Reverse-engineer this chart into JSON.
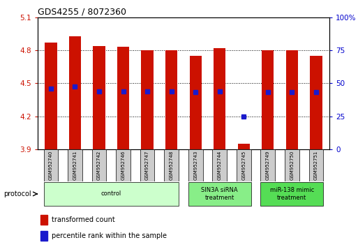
{
  "title": "GDS4255 / 8072360",
  "samples": [
    "GSM952740",
    "GSM952741",
    "GSM952742",
    "GSM952746",
    "GSM952747",
    "GSM952748",
    "GSM952743",
    "GSM952744",
    "GSM952745",
    "GSM952749",
    "GSM952750",
    "GSM952751"
  ],
  "red_values": [
    4.87,
    4.93,
    4.84,
    4.83,
    4.8,
    4.8,
    4.75,
    4.82,
    3.95,
    4.8,
    4.8,
    4.75
  ],
  "blue_values": [
    4.45,
    4.47,
    4.43,
    4.43,
    4.43,
    4.43,
    4.42,
    4.43,
    4.2,
    4.42,
    4.42,
    4.42
  ],
  "ylim_left": [
    3.9,
    5.1
  ],
  "ylim_right": [
    0,
    100
  ],
  "yticks_left": [
    3.9,
    4.2,
    4.5,
    4.8,
    5.1
  ],
  "yticks_right": [
    0,
    25,
    50,
    75,
    100
  ],
  "ytick_labels_right": [
    "0",
    "25",
    "50",
    "75",
    "100%"
  ],
  "bar_bottom": 3.9,
  "bar_width": 0.5,
  "bar_color": "#cc1100",
  "blue_color": "#1a1acc",
  "blue_marker_size": 5,
  "groups": [
    {
      "label": "control",
      "start": 0,
      "end": 5,
      "color": "#ccffcc"
    },
    {
      "label": "SIN3A siRNA\ntreatment",
      "start": 6,
      "end": 8,
      "color": "#88ee88"
    },
    {
      "label": "miR-138 mimic\ntreatment",
      "start": 9,
      "end": 11,
      "color": "#55dd55"
    }
  ],
  "protocol_label": "protocol",
  "legend_red_label": "transformed count",
  "legend_blue_label": "percentile rank within the sample",
  "bg_color": "#ffffff",
  "ax_label_color_left": "#cc1100",
  "ax_label_color_right": "#0000cc",
  "title_color": "#000000",
  "sample_box_color": "#cccccc",
  "dotted_lines": [
    4.2,
    4.5,
    4.8
  ]
}
